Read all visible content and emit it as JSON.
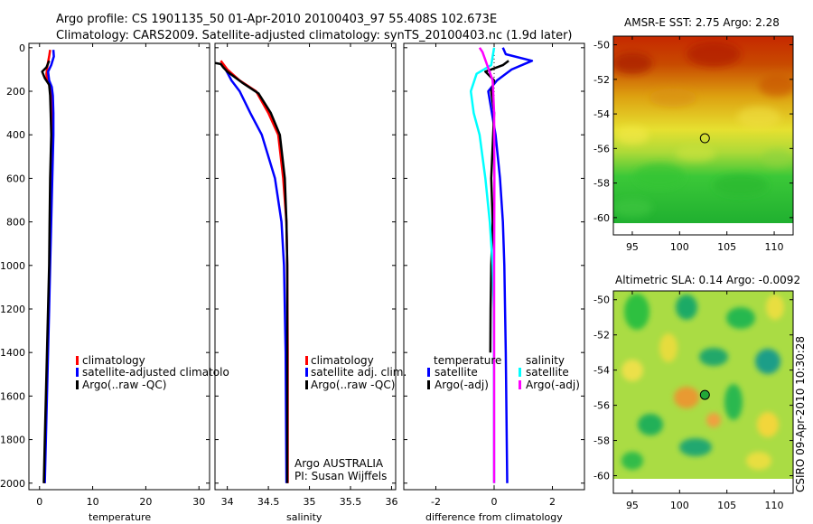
{
  "title": {
    "line1": "Argo profile: CS 1901135_50 01-Apr-2010 20100403_97 55.408S 102.673E",
    "line2": "Climatology: CARS2009. Satellite-adjusted climatology: synTS_20100403.nc (1.9d later)"
  },
  "credit": "CSIRO 09-Apr-2010 10:30:28",
  "colors": {
    "climatology": "#ff0000",
    "satellite": "#0000ff",
    "argo": "#000000",
    "sal_satellite": "#00ffff",
    "sal_argo": "#ff00ff"
  },
  "chart_data": [
    {
      "type": "line",
      "panel": "temperature",
      "xlabel": "temperature",
      "xlim": [
        -2,
        32
      ],
      "ylim": [
        2030,
        -20
      ],
      "xticks": [
        0,
        10,
        20,
        30
      ],
      "yticks": [
        0,
        200,
        400,
        600,
        800,
        1000,
        1200,
        1400,
        1600,
        1800,
        2000
      ],
      "legend": [
        "climatology",
        "satellite-adjusted climatolo",
        "Argo(..raw -QC)"
      ],
      "series": [
        {
          "name": "climatology",
          "color": "#ff0000",
          "points": [
            [
              2.0,
              10
            ],
            [
              1.8,
              40
            ],
            [
              1.5,
              80
            ],
            [
              1.3,
              120
            ],
            [
              1.4,
              150
            ],
            [
              2.0,
              180
            ],
            [
              2.3,
              220
            ],
            [
              2.4,
              300
            ],
            [
              2.4,
              400
            ],
            [
              2.3,
              600
            ],
            [
              2.1,
              800
            ],
            [
              1.9,
              1000
            ],
            [
              1.7,
              1200
            ],
            [
              1.5,
              1400
            ],
            [
              1.3,
              1600
            ],
            [
              1.1,
              1800
            ],
            [
              0.9,
              2000
            ]
          ]
        },
        {
          "name": "satellite-adjusted climatology",
          "color": "#0000ff",
          "points": [
            [
              2.6,
              10
            ],
            [
              2.7,
              40
            ],
            [
              2.2,
              80
            ],
            [
              1.6,
              110
            ],
            [
              1.8,
              150
            ],
            [
              2.3,
              180
            ],
            [
              2.5,
              220
            ],
            [
              2.6,
              300
            ],
            [
              2.6,
              400
            ],
            [
              2.4,
              600
            ],
            [
              2.2,
              800
            ],
            [
              2.0,
              1000
            ],
            [
              1.8,
              1200
            ],
            [
              1.6,
              1400
            ],
            [
              1.4,
              1600
            ],
            [
              1.2,
              1800
            ],
            [
              1.0,
              2000
            ]
          ]
        },
        {
          "name": "Argo(..raw -QC)",
          "color": "#000000",
          "points": [
            [
              1.8,
              60
            ],
            [
              1.3,
              90
            ],
            [
              0.5,
              110
            ],
            [
              1.0,
              140
            ],
            [
              1.8,
              170
            ],
            [
              2.0,
              220
            ],
            [
              2.1,
              300
            ],
            [
              2.2,
              400
            ],
            [
              2.0,
              600
            ],
            [
              1.9,
              800
            ],
            [
              1.8,
              1000
            ],
            [
              1.6,
              1200
            ],
            [
              1.4,
              1400
            ],
            [
              1.2,
              1600
            ],
            [
              1.0,
              1800
            ],
            [
              0.8,
              2000
            ]
          ]
        }
      ]
    },
    {
      "type": "line",
      "panel": "salinity",
      "xlabel": "salinity",
      "xlim": [
        33.85,
        36.05
      ],
      "ylim": [
        2030,
        -20
      ],
      "xticks": [
        34,
        34.5,
        35,
        35.5,
        36
      ],
      "xticklabels": [
        "34",
        "34.5",
        "35",
        "35.5",
        "36"
      ],
      "yticks": [
        0,
        200,
        400,
        600,
        800,
        1000,
        1200,
        1400,
        1600,
        1800,
        2000
      ],
      "legend": [
        "climatology",
        "satellite adj. clim.",
        "Argo(..raw -QC)"
      ],
      "annotation": [
        "Argo AUSTRALIA",
        "PI: Susan Wijffels"
      ],
      "series": [
        {
          "name": "climatology",
          "color": "#ff0000",
          "points": [
            [
              33.92,
              60
            ],
            [
              34.0,
              100
            ],
            [
              34.15,
              150
            ],
            [
              34.35,
              200
            ],
            [
              34.5,
              300
            ],
            [
              34.62,
              400
            ],
            [
              34.68,
              600
            ],
            [
              34.72,
              800
            ],
            [
              34.73,
              1000
            ],
            [
              34.735,
              1400
            ],
            [
              34.735,
              2000
            ]
          ]
        },
        {
          "name": "satellite adj. clim.",
          "color": "#0000ff",
          "points": [
            [
              33.98,
              100
            ],
            [
              34.05,
              150
            ],
            [
              34.15,
              200
            ],
            [
              34.28,
              300
            ],
            [
              34.42,
              400
            ],
            [
              34.58,
              600
            ],
            [
              34.66,
              800
            ],
            [
              34.69,
              1000
            ],
            [
              34.71,
              1400
            ],
            [
              34.72,
              2000
            ]
          ]
        },
        {
          "name": "Argo(..raw -QC)",
          "color": "#000000",
          "points": [
            [
              33.85,
              70
            ],
            [
              33.92,
              75
            ],
            [
              33.95,
              90
            ],
            [
              34.0,
              110
            ],
            [
              34.18,
              160
            ],
            [
              34.38,
              210
            ],
            [
              34.53,
              300
            ],
            [
              34.64,
              400
            ],
            [
              34.7,
              600
            ],
            [
              34.72,
              800
            ],
            [
              34.73,
              1000
            ],
            [
              34.73,
              1400
            ],
            [
              34.73,
              2000
            ]
          ]
        }
      ]
    },
    {
      "type": "line",
      "panel": "difference",
      "xlabel": "difference from climatology",
      "xlim": [
        -3.1,
        3.1
      ],
      "ylim": [
        2030,
        -20
      ],
      "xticks": [
        -2,
        0,
        2
      ],
      "yticks": [
        0,
        200,
        400,
        600,
        800,
        1000,
        1200,
        1400,
        1600,
        1800,
        2000
      ],
      "legend_groups": [
        {
          "heading": "temperature",
          "items": [
            "satellite",
            "Argo(-adj)"
          ]
        },
        {
          "heading": "salinity",
          "items": [
            "satellite",
            "Argo(-adj)"
          ]
        }
      ],
      "series": [
        {
          "name": "temperature satellite",
          "color": "#0000ff",
          "points": [
            [
              0.3,
              0
            ],
            [
              0.4,
              30
            ],
            [
              1.3,
              60
            ],
            [
              0.6,
              100
            ],
            [
              0.1,
              150
            ],
            [
              -0.2,
              200
            ],
            [
              0.05,
              400
            ],
            [
              0.2,
              600
            ],
            [
              0.3,
              800
            ],
            [
              0.35,
              1000
            ],
            [
              0.4,
              1400
            ],
            [
              0.45,
              2000
            ]
          ]
        },
        {
          "name": "temperature Argo(-adj)",
          "color": "#000000",
          "points": [
            [
              0.5,
              60
            ],
            [
              0.3,
              80
            ],
            [
              -0.3,
              110
            ],
            [
              0.0,
              150
            ],
            [
              -0.1,
              200
            ],
            [
              0.0,
              300
            ],
            [
              -0.1,
              600
            ],
            [
              -0.05,
              800
            ],
            [
              -0.1,
              1000
            ],
            [
              -0.12,
              1200
            ],
            [
              -0.13,
              1400
            ]
          ]
        },
        {
          "name": "salinity satellite",
          "color": "#00ffff",
          "points": [
            [
              0.0,
              0
            ],
            [
              -0.1,
              80
            ],
            [
              -0.6,
              120
            ],
            [
              -0.8,
              200
            ],
            [
              -0.7,
              300
            ],
            [
              -0.5,
              400
            ],
            [
              -0.3,
              600
            ],
            [
              -0.15,
              800
            ],
            [
              -0.05,
              1000
            ],
            [
              -0.01,
              1200
            ],
            [
              0.0,
              2000
            ]
          ]
        },
        {
          "name": "salinity Argo(-adj)",
          "color": "#ff00ff",
          "points": [
            [
              -0.5,
              0
            ],
            [
              -0.4,
              20
            ],
            [
              -0.05,
              150
            ],
            [
              0.0,
              300
            ],
            [
              0.01,
              600
            ],
            [
              0.0,
              1000
            ],
            [
              0.0,
              1400
            ],
            [
              0.0,
              2000
            ]
          ]
        }
      ]
    },
    {
      "type": "heatmap",
      "panel": "sst_map",
      "title": "AMSR-E SST: 2.75 Argo: 2.28",
      "xlim": [
        93,
        112
      ],
      "ylim": [
        -61,
        -49.5
      ],
      "xticks": [
        95,
        100,
        105,
        110
      ],
      "yticks": [
        -50,
        -52,
        -54,
        -56,
        -58,
        -60
      ],
      "marker": [
        102.673,
        -55.408
      ],
      "data_extent": {
        "lon": [
          94,
          112
        ],
        "lat": [
          -60,
          -49.5
        ]
      }
    },
    {
      "type": "heatmap",
      "panel": "sla_map",
      "title": "Altimetric SLA: 0.14 Argo: -0.0092",
      "xlim": [
        93,
        112
      ],
      "ylim": [
        -61,
        -49.5
      ],
      "xticks": [
        95,
        100,
        105,
        110
      ],
      "yticks": [
        -50,
        -52,
        -54,
        -56,
        -58,
        -60
      ],
      "marker": [
        102.673,
        -55.408
      ],
      "data_extent": {
        "lon": [
          94,
          112
        ],
        "lat": [
          -60,
          -49.5
        ]
      }
    }
  ]
}
